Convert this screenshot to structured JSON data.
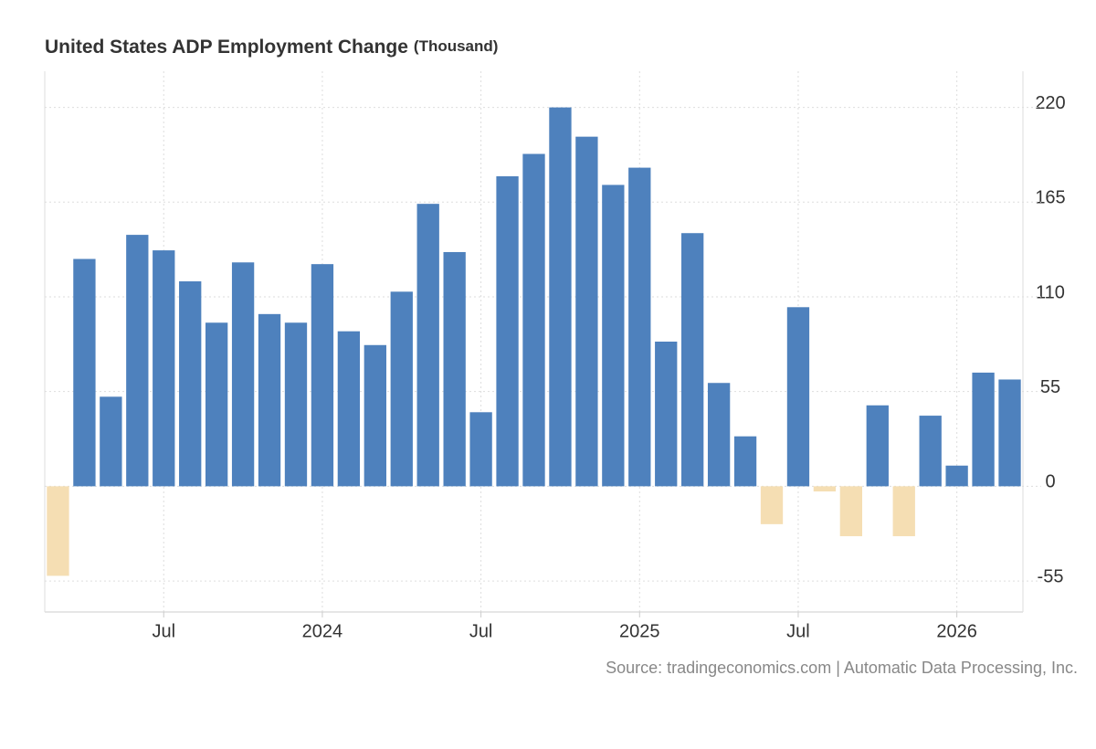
{
  "chart_data": {
    "type": "bar",
    "title": "United States ADP Employment Change",
    "unit": "(Thousand)",
    "source": "Source: tradingeconomics.com | Automatic Data Processing, Inc.",
    "categories": [
      null,
      null,
      null,
      null,
      "Jul",
      null,
      null,
      null,
      null,
      null,
      "2024",
      null,
      null,
      null,
      null,
      null,
      "Jul",
      null,
      null,
      null,
      null,
      null,
      "2025",
      null,
      null,
      null,
      null,
      null,
      "Jul",
      null,
      null,
      null,
      null,
      null,
      "2026",
      null,
      null
    ],
    "values": [
      -52,
      132,
      52,
      146,
      137,
      119,
      95,
      130,
      100,
      95,
      129,
      90,
      82,
      113,
      164,
      136,
      43,
      180,
      193,
      220,
      203,
      175,
      185,
      84,
      147,
      60,
      29,
      -22,
      104,
      -3,
      -29,
      47,
      -29,
      41,
      12,
      66,
      62
    ],
    "color": "#4e81bd",
    "negative_color": "#f5deb3",
    "ylim": [
      -73,
      241
    ],
    "yticks": [
      -55,
      0,
      55,
      110,
      165,
      220
    ],
    "grid": true
  }
}
